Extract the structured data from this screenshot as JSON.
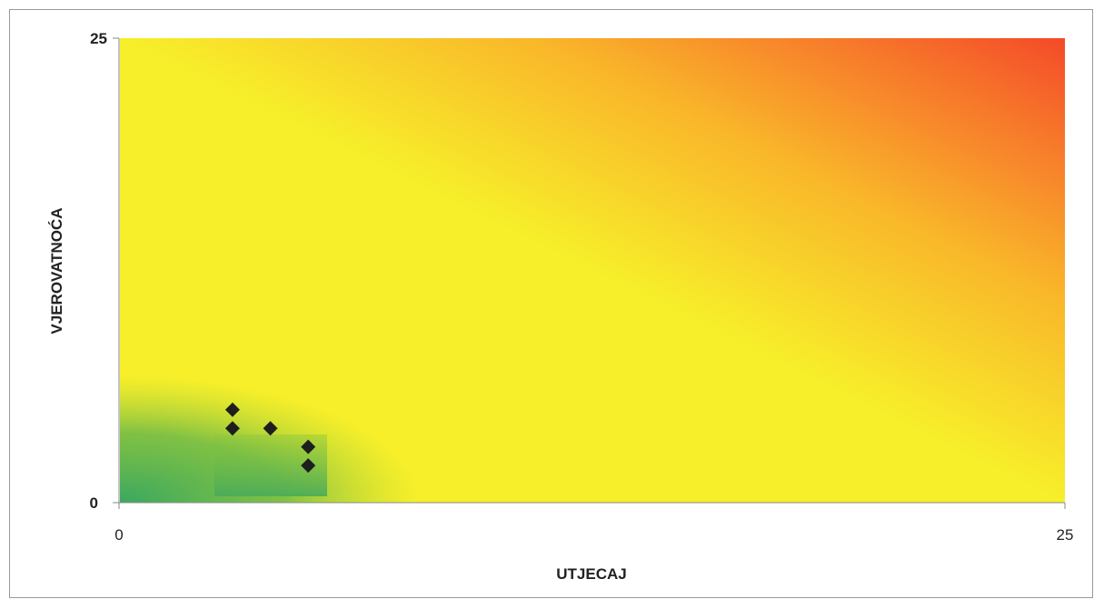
{
  "chart_data": {
    "type": "scatter",
    "title": "",
    "xlabel": "UTJECAJ",
    "ylabel": "VJEROVATNOĆA",
    "xlim": [
      0,
      25
    ],
    "ylim": [
      0,
      25
    ],
    "x_ticks": [
      "0",
      "25"
    ],
    "y_ticks": [
      "0",
      "25"
    ],
    "grid": false,
    "background": "risk heatmap gradient: green (low) → yellow → red (high)",
    "colors": {
      "low": "#3aa860",
      "mid": "#f7ef2a",
      "high": "#f44a28",
      "marker": "#1e1e1e"
    },
    "series": [
      {
        "marker": "diamond",
        "points": [
          {
            "x": 3,
            "y": 5
          },
          {
            "x": 3,
            "y": 4
          },
          {
            "x": 4,
            "y": 4
          },
          {
            "x": 5,
            "y": 3
          },
          {
            "x": 5,
            "y": 2
          }
        ]
      }
    ]
  }
}
